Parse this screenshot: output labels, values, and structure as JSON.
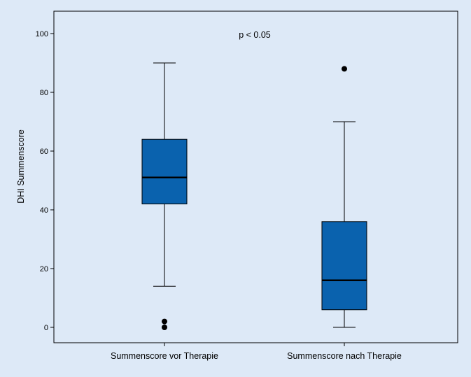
{
  "chart_data": {
    "type": "boxplot",
    "ylabel": "DHI Summenscore",
    "xlabel": "",
    "ylim": [
      -5,
      105
    ],
    "yticks": [
      0,
      20,
      40,
      60,
      80,
      100
    ],
    "annotation": "p < 0.05",
    "grid": false,
    "colors": {
      "box_fill": "#0a62ae",
      "background": "#dde9f7",
      "stroke": "#000000"
    },
    "categories": [
      "Summenscore vor Therapie",
      "Summenscore nach Therapie"
    ],
    "boxes": [
      {
        "category": "Summenscore vor Therapie",
        "whisker_low": 14,
        "q1": 42,
        "median": 51,
        "q3": 64,
        "whisker_high": 90,
        "outliers": [
          0,
          2
        ]
      },
      {
        "category": "Summenscore nach Therapie",
        "whisker_low": 0,
        "q1": 6,
        "median": 16,
        "q3": 36,
        "whisker_high": 70,
        "outliers": [
          88
        ]
      }
    ]
  }
}
